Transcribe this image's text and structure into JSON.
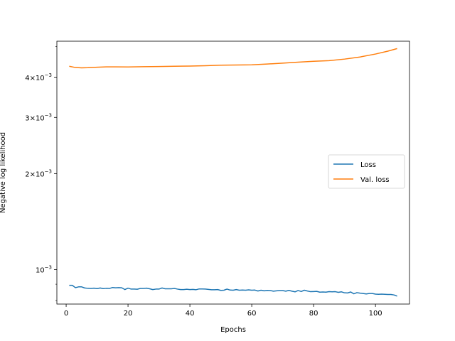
{
  "chart_data": {
    "type": "line",
    "title": "",
    "xlabel": "Epochs",
    "ylabel": "Negative log likelihood",
    "yscale": "log",
    "xlim": [
      -3,
      111
    ],
    "ylim": [
      0.00078,
      0.0052
    ],
    "x_ticks": [
      {
        "value": 0,
        "label": "0"
      },
      {
        "value": 20,
        "label": "20"
      },
      {
        "value": 40,
        "label": "40"
      },
      {
        "value": 60,
        "label": "60"
      },
      {
        "value": 80,
        "label": "80"
      },
      {
        "value": 100,
        "label": "100"
      }
    ],
    "y_ticks": [
      {
        "value": 0.001,
        "base": "10",
        "exp": "−3"
      },
      {
        "value": 0.002,
        "base": "2×10",
        "exp": "−3"
      },
      {
        "value": 0.003,
        "base": "3×10",
        "exp": "−3"
      },
      {
        "value": 0.004,
        "base": "4×10",
        "exp": "−3"
      }
    ],
    "y_minor_ticks": [
      0.0008,
      0.0009,
      0.005
    ],
    "grid": false,
    "legend_position": "center-right",
    "series": [
      {
        "name": "Loss",
        "color": "#1f77b4",
        "points": [
          [
            1,
            0.000893
          ],
          [
            2,
            0.000893
          ],
          [
            3,
            0.000878
          ],
          [
            4,
            0.000883
          ],
          [
            5,
            0.000883
          ],
          [
            6,
            0.000876
          ],
          [
            7,
            0.000874
          ],
          [
            8,
            0.000873
          ],
          [
            9,
            0.000875
          ],
          [
            10,
            0.000872
          ],
          [
            11,
            0.000876
          ],
          [
            12,
            0.000872
          ],
          [
            13,
            0.000874
          ],
          [
            14,
            0.000873
          ],
          [
            15,
            0.000879
          ],
          [
            16,
            0.000877
          ],
          [
            17,
            0.000878
          ],
          [
            18,
            0.000877
          ],
          [
            19,
            0.000866
          ],
          [
            20,
            0.000875
          ],
          [
            21,
            0.000869
          ],
          [
            22,
            0.000869
          ],
          [
            23,
            0.000868
          ],
          [
            24,
            0.000873
          ],
          [
            25,
            0.000873
          ],
          [
            26,
            0.000875
          ],
          [
            27,
            0.000871
          ],
          [
            28,
            0.000866
          ],
          [
            29,
            0.000869
          ],
          [
            30,
            0.000869
          ],
          [
            31,
            0.000876
          ],
          [
            32,
            0.000871
          ],
          [
            33,
            0.000871
          ],
          [
            34,
            0.000871
          ],
          [
            35,
            0.000873
          ],
          [
            36,
            0.000869
          ],
          [
            37,
            0.000866
          ],
          [
            38,
            0.000866
          ],
          [
            39,
            0.000868
          ],
          [
            40,
            0.000866
          ],
          [
            41,
            0.000867
          ],
          [
            42,
            0.000865
          ],
          [
            43,
            0.00087
          ],
          [
            44,
            0.00087
          ],
          [
            45,
            0.000869
          ],
          [
            46,
            0.000867
          ],
          [
            47,
            0.000865
          ],
          [
            48,
            0.000865
          ],
          [
            49,
            0.000866
          ],
          [
            50,
            0.000861
          ],
          [
            51,
            0.000862
          ],
          [
            52,
            0.000869
          ],
          [
            53,
            0.000863
          ],
          [
            54,
            0.000862
          ],
          [
            55,
            0.000866
          ],
          [
            56,
            0.000862
          ],
          [
            57,
            0.000863
          ],
          [
            58,
            0.000862
          ],
          [
            59,
            0.000864
          ],
          [
            60,
            0.000862
          ],
          [
            61,
            0.000863
          ],
          [
            62,
            0.000857
          ],
          [
            63,
            0.000862
          ],
          [
            64,
            0.000858
          ],
          [
            65,
            0.000861
          ],
          [
            66,
            0.00086
          ],
          [
            67,
            0.000856
          ],
          [
            68,
            0.000858
          ],
          [
            69,
            0.00086
          ],
          [
            70,
            0.00086
          ],
          [
            71,
            0.000856
          ],
          [
            72,
            0.000861
          ],
          [
            73,
            0.000856
          ],
          [
            74,
            0.000852
          ],
          [
            75,
            0.00086
          ],
          [
            76,
            0.000854
          ],
          [
            77,
            0.000862
          ],
          [
            78,
            0.000857
          ],
          [
            79,
            0.000853
          ],
          [
            80,
            0.000854
          ],
          [
            81,
            0.000855
          ],
          [
            82,
            0.00085
          ],
          [
            83,
            0.000851
          ],
          [
            84,
            0.00085
          ],
          [
            85,
            0.000853
          ],
          [
            86,
            0.000852
          ],
          [
            87,
            0.000853
          ],
          [
            88,
            0.000849
          ],
          [
            89,
            0.000852
          ],
          [
            90,
            0.000846
          ],
          [
            91,
            0.000845
          ],
          [
            92,
            0.000851
          ],
          [
            93,
            0.00084
          ],
          [
            94,
            0.000847
          ],
          [
            95,
            0.000844
          ],
          [
            96,
            0.000842
          ],
          [
            97,
            0.000839
          ],
          [
            98,
            0.000842
          ],
          [
            99,
            0.000842
          ],
          [
            100,
            0.000838
          ],
          [
            101,
            0.000837
          ],
          [
            102,
            0.000838
          ],
          [
            103,
            0.000837
          ],
          [
            104,
            0.000836
          ],
          [
            105,
            0.000836
          ],
          [
            106,
            0.000833
          ],
          [
            107,
            0.000826
          ]
        ]
      },
      {
        "name": "Val. loss",
        "color": "#ff7f0e",
        "points": [
          [
            1,
            0.00434
          ],
          [
            3,
            0.0043
          ],
          [
            5,
            0.00429
          ],
          [
            7,
            0.004295
          ],
          [
            10,
            0.00431
          ],
          [
            13,
            0.00432
          ],
          [
            16,
            0.004322
          ],
          [
            20,
            0.004318
          ],
          [
            25,
            0.004325
          ],
          [
            30,
            0.004333
          ],
          [
            35,
            0.00434
          ],
          [
            40,
            0.004345
          ],
          [
            45,
            0.004358
          ],
          [
            50,
            0.004375
          ],
          [
            55,
            0.004378
          ],
          [
            60,
            0.004385
          ],
          [
            65,
            0.00441
          ],
          [
            70,
            0.00444
          ],
          [
            75,
            0.00447
          ],
          [
            80,
            0.0045
          ],
          [
            85,
            0.00452
          ],
          [
            90,
            0.00457
          ],
          [
            95,
            0.00464
          ],
          [
            100,
            0.00474
          ],
          [
            104,
            0.00484
          ],
          [
            107,
            0.00493
          ]
        ]
      }
    ]
  }
}
